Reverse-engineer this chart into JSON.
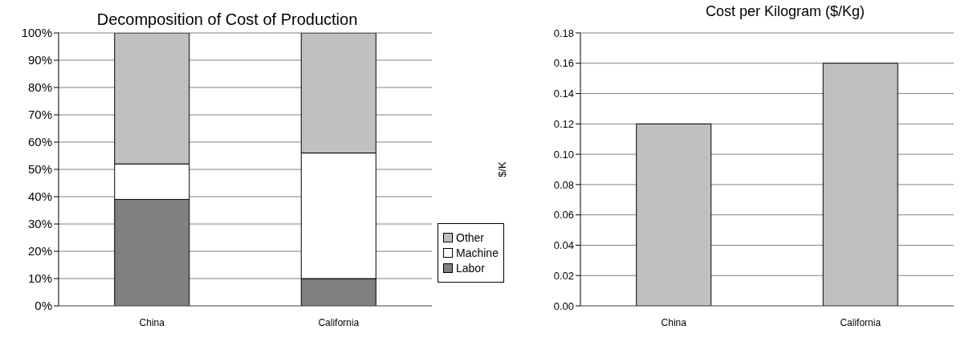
{
  "chart_data": [
    {
      "type": "bar",
      "title": "Decomposition of Cost of Production",
      "categories": [
        "China",
        "California"
      ],
      "stacked": true,
      "legend": "right",
      "grid": "y",
      "series": [
        {
          "name": "Labor",
          "color": "#808080",
          "values": [
            39,
            10
          ]
        },
        {
          "name": "Machine",
          "color": "#ffffff",
          "values": [
            13,
            46
          ]
        },
        {
          "name": "Other",
          "color": "#c0c0c0",
          "values": [
            48,
            44
          ]
        }
      ],
      "ylim": [
        0,
        100
      ],
      "yticks": [
        {
          "value": 0,
          "label": "0%"
        },
        {
          "value": 10,
          "label": "10%"
        },
        {
          "value": 20,
          "label": "20%"
        },
        {
          "value": 30,
          "label": "30%"
        },
        {
          "value": 40,
          "label": "40%"
        },
        {
          "value": 50,
          "label": "50%"
        },
        {
          "value": 60,
          "label": "60%"
        },
        {
          "value": 70,
          "label": "70%"
        },
        {
          "value": 80,
          "label": "80%"
        },
        {
          "value": 90,
          "label": "90%"
        },
        {
          "value": 100,
          "label": "100%"
        }
      ]
    },
    {
      "type": "bar",
      "title": "Cost per Kilogram ($/Kg)",
      "ylabel": "$/K",
      "categories": [
        "China",
        "California"
      ],
      "grid": "y",
      "values": [
        0.12,
        0.16
      ],
      "color": "#c0c0c0",
      "ylim": [
        0,
        0.18
      ],
      "yticks": [
        {
          "value": 0,
          "label": "0.00"
        },
        0.02,
        0.04,
        0.06,
        0.08,
        {
          "value": 0.1,
          "label": "0.10"
        },
        0.12,
        0.14,
        0.16,
        0.18
      ]
    }
  ]
}
